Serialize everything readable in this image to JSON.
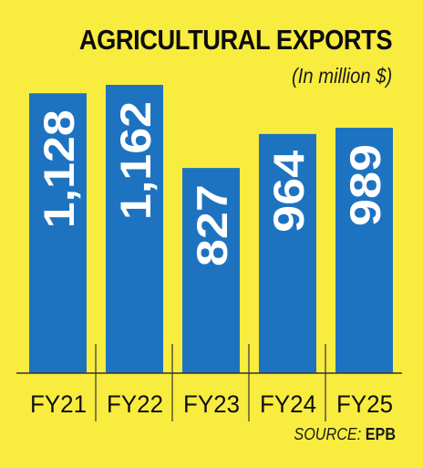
{
  "header": {
    "title": "AGRICULTURAL EXPORTS",
    "subtitle": "(In million $)"
  },
  "source": {
    "label": "SOURCE:",
    "org": "EPB"
  },
  "colors": {
    "background": "#F8EC3F",
    "bar": "#1E73C0",
    "value_text": "#FFFFFF",
    "axis": "#333333"
  },
  "chart_data": {
    "type": "bar",
    "categories": [
      "FY21",
      "FY22",
      "FY23",
      "FY24",
      "FY25"
    ],
    "values": [
      1128,
      1162,
      827,
      964,
      989
    ],
    "value_labels": [
      "1,128",
      "1,162",
      "827",
      "964",
      "989"
    ],
    "title": "AGRICULTURAL EXPORTS",
    "subtitle": "(In million $)",
    "grid": false
  }
}
